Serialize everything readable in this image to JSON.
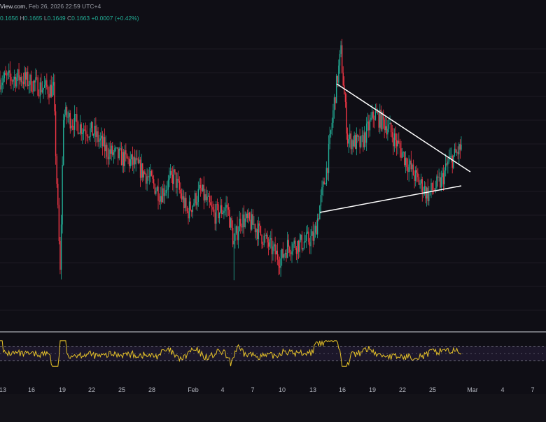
{
  "header": {
    "source_fragment": "View.com,",
    "timestamp": "Feb 26, 2026 22:59 UTC+4"
  },
  "ohlc": {
    "open_value": "0.1656",
    "high_label": "H",
    "high_value": "0.1665",
    "low_label": "L",
    "low_value": "0.1649",
    "close_label": "C",
    "close_value": "0.1663",
    "change": "+0.0007 (+0.42%)"
  },
  "colors": {
    "background": "#0f0e15",
    "up": "#22ab94",
    "down": "#f23645",
    "trendline": "#ffffff",
    "rsi": "#e6c229",
    "rsi_band": "#7e57c2",
    "grid": "#1c1b24"
  },
  "chart_data": {
    "type": "candlestick",
    "x_tick_labels": [
      "13",
      "16",
      "19",
      "22",
      "25",
      "28",
      "Feb",
      "4",
      "7",
      "10",
      "13",
      "16",
      "19",
      "22",
      "25",
      "Mar",
      "4",
      "7"
    ],
    "price_path": [
      [
        0,
        0.1718
      ],
      [
        3,
        0.172
      ],
      [
        6,
        0.1712
      ],
      [
        8,
        0.171
      ],
      [
        9,
        0.156
      ],
      [
        9.5,
        0.169
      ],
      [
        12,
        0.168
      ],
      [
        14,
        0.1675
      ],
      [
        16,
        0.166
      ],
      [
        18,
        0.1655
      ],
      [
        20,
        0.165
      ],
      [
        22,
        0.164
      ],
      [
        24,
        0.1625
      ],
      [
        26,
        0.164
      ],
      [
        28,
        0.161
      ],
      [
        30,
        0.1628
      ],
      [
        32,
        0.1608
      ],
      [
        34,
        0.1615
      ],
      [
        35,
        0.1585
      ],
      [
        36,
        0.1605
      ],
      [
        38,
        0.16
      ],
      [
        40,
        0.1585
      ],
      [
        41,
        0.1578
      ],
      [
        42,
        0.1572
      ],
      [
        43,
        0.1583
      ],
      [
        45,
        0.1585
      ],
      [
        47,
        0.159
      ],
      [
        49,
        0.165
      ],
      [
        50,
        0.17
      ],
      [
        51,
        0.174
      ],
      [
        52,
        0.167
      ],
      [
        54,
        0.1665
      ],
      [
        56,
        0.169
      ],
      [
        58,
        0.168
      ],
      [
        60,
        0.166
      ],
      [
        62,
        0.164
      ],
      [
        64,
        0.1625
      ],
      [
        66,
        0.1635
      ],
      [
        67,
        0.165
      ],
      [
        68,
        0.1656
      ],
      [
        69,
        0.1663
      ]
    ],
    "y_range": [
      0.155,
      0.176
    ],
    "rsi_range": [
      0,
      100
    ],
    "rsi_bands": [
      30,
      70
    ],
    "grid": true
  }
}
